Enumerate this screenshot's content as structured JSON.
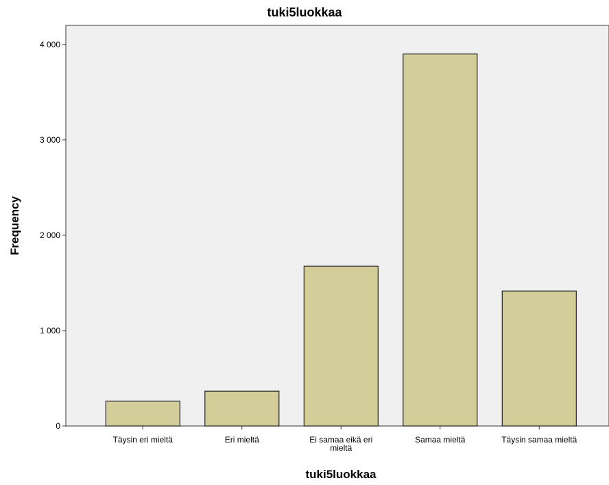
{
  "chart_data": {
    "type": "bar",
    "title": "tuki5luokkaa",
    "xlabel": "tuki5luokkaa",
    "ylabel": "Frequency",
    "categories": [
      [
        "Täysin eri mieltä"
      ],
      [
        "Eri mieltä"
      ],
      [
        "Ei samaa eikä eri",
        "mieltä"
      ],
      [
        "Samaa mieltä"
      ],
      [
        "Täysin samaa mieltä"
      ]
    ],
    "values": [
      260,
      365,
      1675,
      3900,
      1415
    ],
    "ylim": [
      0,
      4200
    ],
    "yticks": [
      0,
      1000,
      2000,
      3000,
      4000
    ],
    "ytick_labels": [
      "0",
      "1 000",
      "2 000",
      "3 000",
      "4 000"
    ],
    "grid": false,
    "colors": {
      "bar_fill": "#d3ce99",
      "bar_stroke": "#222222",
      "plot_background": "#f0f0f0",
      "axis": "#333333"
    }
  }
}
